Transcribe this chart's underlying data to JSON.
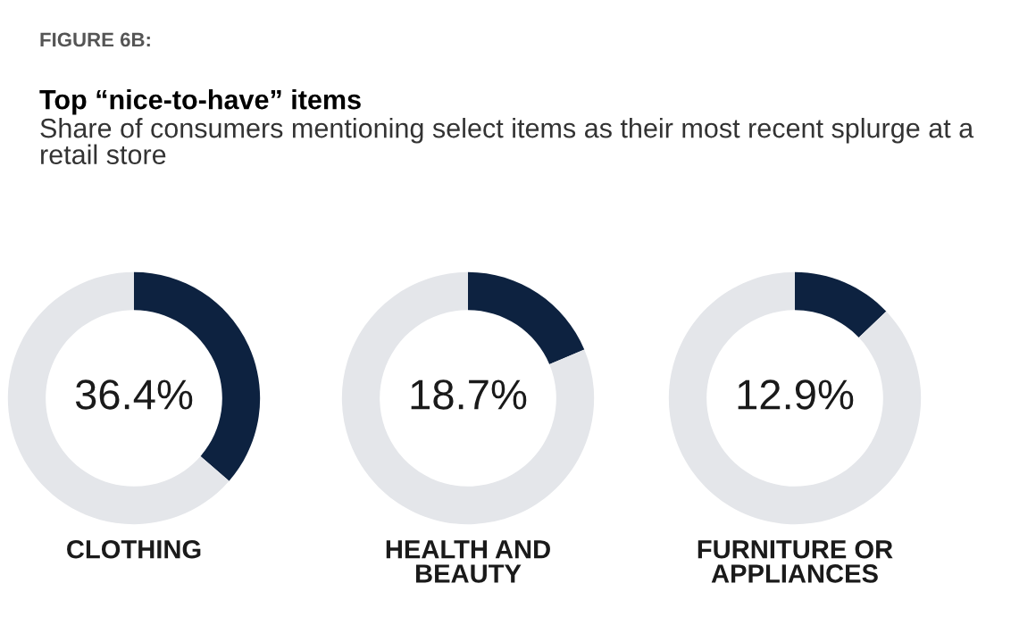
{
  "chart_data": [
    {
      "type": "donut",
      "title": "Top “nice-to-have” items",
      "subtitle": "Share of consumers mentioning select items as their most recent splurge at a retail store",
      "annotations": [
        "FIGURE 6B:"
      ],
      "xlabel": "CLOTHING",
      "categories": [
        null,
        null
      ],
      "values": [
        36.4,
        63.6
      ],
      "value_labels": [
        "36.4%",
        null
      ],
      "colors": [
        "#0d2240",
        "#e4e6ea"
      ],
      "legend": false
    },
    {
      "type": "donut",
      "xlabel": "HEALTH AND\nBEAUTY",
      "categories": [
        null,
        null
      ],
      "values": [
        18.7,
        81.3
      ],
      "value_labels": [
        "18.7%",
        null
      ],
      "colors": [
        "#0d2240",
        "#e4e6ea"
      ],
      "legend": false
    },
    {
      "type": "donut",
      "xlabel": "FURNITURE OR\nAPPLIANCES",
      "categories": [
        null,
        null
      ],
      "values": [
        12.9,
        87.1
      ],
      "value_labels": [
        "12.9%",
        null
      ],
      "colors": [
        "#0d2240",
        "#e4e6ea"
      ],
      "legend": false
    }
  ]
}
